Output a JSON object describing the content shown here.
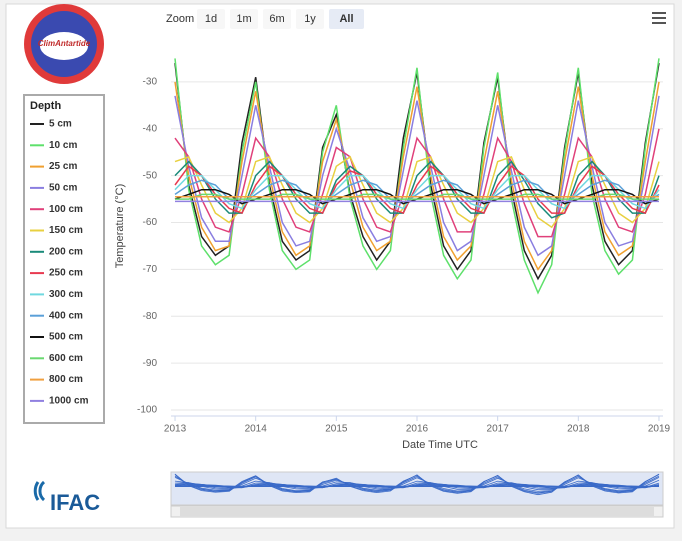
{
  "logos": {
    "top": "ClimAntartide",
    "bottom": "IFAC"
  },
  "zoom": {
    "label": "Zoom",
    "buttons": [
      "1d",
      "1m",
      "6m",
      "1y",
      "All"
    ]
  },
  "chart_data": {
    "type": "line",
    "x_label": "Date Time UTC",
    "y_label": "Temperature (°C)",
    "legend_title": "Depth",
    "legend": "left",
    "grid": true,
    "xlim": [
      2012.95,
      2019.05
    ],
    "xticks": [
      2013,
      2014,
      2015,
      2016,
      2017,
      2018,
      2019
    ],
    "ylim": [
      -100,
      -20
    ],
    "yticks": [
      -30,
      -40,
      -50,
      -60,
      -70,
      -80,
      -90,
      -100
    ],
    "x": [
      2013,
      2013.17,
      2013.33,
      2013.5,
      2013.67,
      2013.83,
      2014,
      2014.17,
      2014.33,
      2014.5,
      2014.67,
      2014.83,
      2015,
      2015.17,
      2015.33,
      2015.5,
      2015.67,
      2015.83,
      2016,
      2016.17,
      2016.33,
      2016.5,
      2016.67,
      2016.83,
      2017,
      2017.17,
      2017.33,
      2017.5,
      2017.67,
      2017.83,
      2018,
      2018.17,
      2018.33,
      2018.5,
      2018.67,
      2018.83,
      2019
    ],
    "series": [
      {
        "name": "5 cm",
        "color": "#222222",
        "values": [
          -26,
          -52,
          -63,
          -67,
          -65,
          -43,
          -29,
          -52,
          -64,
          -68,
          -66,
          -44,
          -37,
          -54,
          -63,
          -68,
          -64,
          -42,
          -28,
          -52,
          -65,
          -70,
          -66,
          -43,
          -29,
          -53,
          -66,
          -72,
          -67,
          -44,
          -28,
          -52,
          -64,
          -69,
          -66,
          -43,
          -26
        ]
      },
      {
        "name": "10 cm",
        "color": "#5ee06b",
        "values": [
          -25,
          -53,
          -65,
          -69,
          -67,
          -45,
          -30,
          -53,
          -66,
          -70,
          -68,
          -45,
          -35,
          -55,
          -65,
          -70,
          -66,
          -44,
          -27,
          -54,
          -67,
          -72,
          -68,
          -44,
          -28,
          -55,
          -68,
          -75,
          -69,
          -45,
          -27,
          -54,
          -66,
          -71,
          -68,
          -44,
          -25
        ]
      },
      {
        "name": "25 cm",
        "color": "#f0a030",
        "values": [
          -30,
          -50,
          -61,
          -66,
          -65,
          -47,
          -32,
          -50,
          -62,
          -67,
          -65,
          -47,
          -38,
          -51,
          -61,
          -66,
          -64,
          -46,
          -31,
          -50,
          -63,
          -68,
          -65,
          -47,
          -32,
          -51,
          -64,
          -70,
          -66,
          -47,
          -31,
          -50,
          -62,
          -67,
          -65,
          -47,
          -30
        ]
      },
      {
        "name": "50 cm",
        "color": "#8a7ee0",
        "values": [
          -33,
          -48,
          -59,
          -64,
          -64,
          -50,
          -35,
          -48,
          -60,
          -65,
          -64,
          -50,
          -40,
          -49,
          -59,
          -64,
          -63,
          -49,
          -34,
          -48,
          -60,
          -66,
          -64,
          -50,
          -35,
          -49,
          -61,
          -67,
          -65,
          -50,
          -34,
          -48,
          -60,
          -65,
          -64,
          -50,
          -33
        ]
      },
      {
        "name": "100 cm",
        "color": "#e0407a",
        "values": [
          -42,
          -46,
          -55,
          -61,
          -62,
          -54,
          -42,
          -46,
          -55,
          -61,
          -62,
          -54,
          -44,
          -46,
          -55,
          -61,
          -62,
          -54,
          -42,
          -46,
          -55,
          -62,
          -62,
          -54,
          -42,
          -47,
          -56,
          -63,
          -63,
          -54,
          -42,
          -46,
          -55,
          -61,
          -62,
          -54,
          -40
        ]
      },
      {
        "name": "150 cm",
        "color": "#e8d040",
        "values": [
          -47,
          -46,
          -52,
          -58,
          -60,
          -57,
          -47,
          -46,
          -52,
          -58,
          -60,
          -57,
          -48,
          -46,
          -52,
          -58,
          -60,
          -57,
          -47,
          -46,
          -52,
          -58,
          -60,
          -57,
          -47,
          -46,
          -53,
          -59,
          -61,
          -57,
          -47,
          -46,
          -52,
          -58,
          -60,
          -57,
          -47
        ]
      },
      {
        "name": "200 cm",
        "color": "#1a8a7a",
        "values": [
          -50,
          -47,
          -50,
          -55,
          -58,
          -58,
          -50,
          -47,
          -50,
          -55,
          -58,
          -58,
          -51,
          -48,
          -50,
          -55,
          -58,
          -58,
          -50,
          -47,
          -50,
          -55,
          -58,
          -58,
          -50,
          -47,
          -51,
          -56,
          -59,
          -58,
          -50,
          -47,
          -50,
          -55,
          -58,
          -58,
          -50
        ]
      },
      {
        "name": "250 cm",
        "color": "#e83a50",
        "values": [
          -52,
          -48,
          -50,
          -54,
          -57,
          -58,
          -52,
          -48,
          -50,
          -54,
          -57,
          -58,
          -52,
          -49,
          -50,
          -54,
          -57,
          -58,
          -52,
          -48,
          -50,
          -54,
          -57,
          -58,
          -52,
          -48,
          -50,
          -55,
          -58,
          -58,
          -52,
          -48,
          -50,
          -54,
          -57,
          -58,
          -52
        ]
      },
      {
        "name": "300 cm",
        "color": "#70d8e0",
        "values": [
          -53,
          -50,
          -50,
          -53,
          -56,
          -57,
          -53,
          -50,
          -50,
          -53,
          -56,
          -57,
          -53,
          -50,
          -50,
          -53,
          -56,
          -57,
          -53,
          -50,
          -50,
          -53,
          -56,
          -57,
          -53,
          -50,
          -50,
          -53,
          -56,
          -57,
          -53,
          -50,
          -50,
          -53,
          -56,
          -57,
          -53
        ]
      },
      {
        "name": "400 cm",
        "color": "#5aa0d8",
        "values": [
          -54,
          -52,
          -51,
          -52,
          -55,
          -56,
          -54,
          -52,
          -51,
          -52,
          -55,
          -56,
          -54,
          -52,
          -51,
          -52,
          -55,
          -56,
          -54,
          -52,
          -51,
          -52,
          -55,
          -56,
          -54,
          -52,
          -51,
          -52,
          -55,
          -56,
          -54,
          -52,
          -51,
          -52,
          -55,
          -56,
          -54
        ]
      },
      {
        "name": "500 cm",
        "color": "#111111",
        "values": [
          -55,
          -54,
          -53,
          -53,
          -54,
          -56,
          -55,
          -54,
          -53,
          -53,
          -54,
          -56,
          -55,
          -54,
          -53,
          -53,
          -54,
          -56,
          -55,
          -54,
          -53,
          -53,
          -54,
          -56,
          -55,
          -54,
          -53,
          -53,
          -54,
          -56,
          -55,
          -54,
          -53,
          -53,
          -54,
          -56,
          -55
        ]
      },
      {
        "name": "600 cm",
        "color": "#6ad870",
        "values": [
          -55,
          -55,
          -54,
          -54,
          -55,
          -55,
          -55,
          -55,
          -54,
          -54,
          -55,
          -55,
          -55,
          -55,
          -54,
          -54,
          -55,
          -55,
          -55,
          -55,
          -54,
          -54,
          -55,
          -55,
          -55,
          -55,
          -54,
          -54,
          -55,
          -55,
          -55,
          -55,
          -54,
          -54,
          -55,
          -55,
          -55
        ]
      },
      {
        "name": "800 cm",
        "color": "#f0a040",
        "values": [
          -54.5,
          -54.5,
          -54.5,
          -54.5,
          -54.5,
          -54.5,
          -54.5,
          -54.5,
          -54.5,
          -54.5,
          -54.5,
          -54.5,
          -54.5,
          -54.5,
          -54.5,
          -54.5,
          -54.5,
          -54.5,
          -54.5,
          -54.5,
          -54.5,
          -54.5,
          -54.5,
          -54.5,
          -54.5,
          -54.5,
          -54.5,
          -54.5,
          -54.5,
          -54.5,
          -54.5,
          -54.5,
          -54.5,
          -54.5,
          -54.5,
          -54.5,
          -54.5
        ]
      },
      {
        "name": "1000 cm",
        "color": "#9080e0",
        "values": [
          -55.5,
          -55.5,
          -55.5,
          -55.5,
          -55.5,
          -55.5,
          -55.5,
          -55.5,
          -55.5,
          -55.5,
          -55.5,
          -55.5,
          -55.5,
          -55.5,
          -55.5,
          -55.5,
          -55.5,
          -55.5,
          -55.5,
          -55.5,
          -55.5,
          -55.5,
          -55.5,
          -55.5,
          -55.5,
          -55.5,
          -55.5,
          -55.5,
          -55.5,
          -55.5,
          -55.5,
          -55.5,
          -55.5,
          -55.5,
          -55.5,
          -55.5,
          -55.5
        ]
      }
    ]
  }
}
